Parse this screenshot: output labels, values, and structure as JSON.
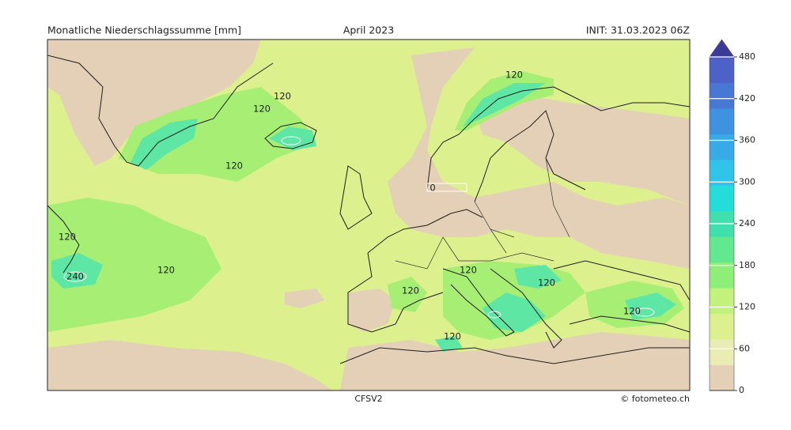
{
  "header": {
    "title": "Monatliche Niederschlagssumme [mm]",
    "period": "April 2023",
    "init": "INIT: 31.03.2023 06Z"
  },
  "footer": {
    "model": "CFSV2",
    "credit": "© fotometeo.ch"
  },
  "contour_labels": [
    "120",
    "120",
    "120",
    "120",
    "0",
    "120",
    "240",
    "120",
    "120",
    "120",
    "120",
    "120",
    "120"
  ],
  "colorbar": {
    "ticks": [
      0,
      60,
      120,
      180,
      240,
      300,
      360,
      420,
      480
    ],
    "colors": [
      "#e3d0b6",
      "#e9edb4",
      "#dcf18e",
      "#c2f27c",
      "#8eef78",
      "#62e88e",
      "#40e0ae",
      "#24dcd8",
      "#30c4ea",
      "#38aae8",
      "#3f92e0",
      "#4878d6",
      "#4c62c8"
    ],
    "over_color": "#3c3c98"
  }
}
